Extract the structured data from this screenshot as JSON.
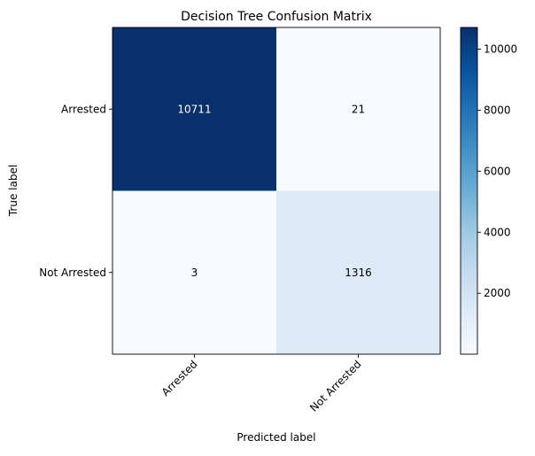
{
  "chart_data": {
    "type": "heatmap",
    "title": "Decision Tree Confusion Matrix",
    "xlabel": "Predicted label",
    "ylabel": "True label",
    "x_categories": [
      "Arrested",
      "Not Arrested"
    ],
    "y_categories": [
      "Arrested",
      "Not Arrested"
    ],
    "matrix": [
      [
        10711,
        21
      ],
      [
        3,
        1316
      ]
    ],
    "cell_labels": [
      [
        "10711",
        "21"
      ],
      [
        "3",
        "1316"
      ]
    ],
    "colormap": "Blues",
    "color_range": [
      3,
      10711
    ],
    "colorbar_ticks": [
      "2000",
      "4000",
      "6000",
      "8000",
      "10000"
    ],
    "grid": false
  }
}
